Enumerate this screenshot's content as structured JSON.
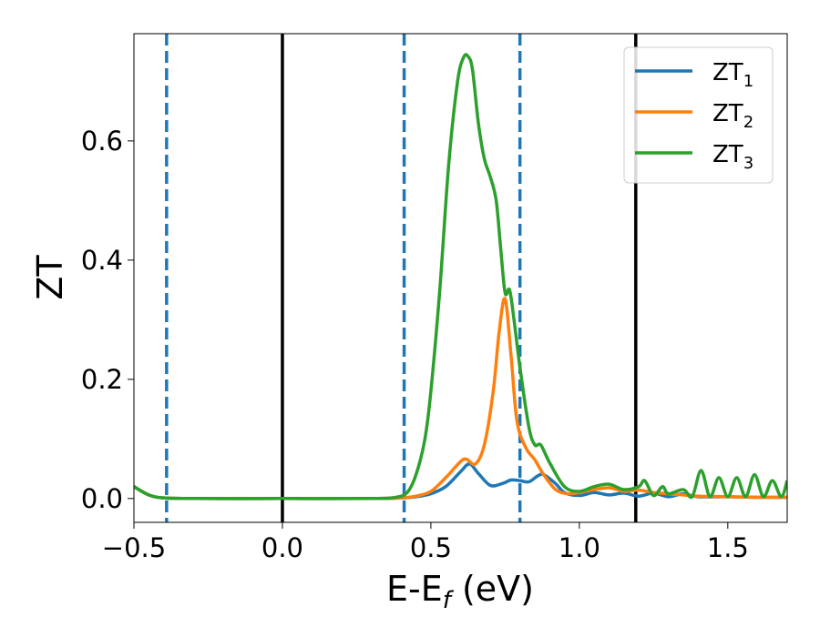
{
  "chart_data": {
    "type": "line",
    "xlabel": "E-E",
    "xlabel_sub": "f",
    "xlabel_unit": " (eV)",
    "ylabel": "ZT",
    "xlim": [
      -0.5,
      1.7
    ],
    "ylim": [
      -0.04,
      0.78
    ],
    "xticks": [
      -0.5,
      0.0,
      0.5,
      1.0,
      1.5
    ],
    "xtick_labels": [
      "−0.5",
      "0.0",
      "0.5",
      "1.0",
      "1.5"
    ],
    "yticks": [
      0.0,
      0.2,
      0.4,
      0.6
    ],
    "ytick_labels": [
      "0.0",
      "0.2",
      "0.4",
      "0.6"
    ],
    "grid": false,
    "legend_position": "top-right",
    "vlines": [
      {
        "x": -0.39,
        "style": "dashed",
        "color": "#1f77b4"
      },
      {
        "x": 0.0,
        "style": "solid",
        "color": "#000000"
      },
      {
        "x": 0.41,
        "style": "dashed",
        "color": "#1f77b4"
      },
      {
        "x": 0.8,
        "style": "dashed",
        "color": "#1f77b4"
      },
      {
        "x": 1.19,
        "style": "solid",
        "color": "#000000"
      }
    ],
    "series": [
      {
        "name": "ZT",
        "name_sub": "1",
        "color": "#1f77b4",
        "x": [
          -0.5,
          -0.45,
          -0.4,
          -0.3,
          0.0,
          0.3,
          0.4,
          0.45,
          0.5,
          0.55,
          0.6,
          0.63,
          0.66,
          0.7,
          0.74,
          0.77,
          0.8,
          0.83,
          0.86,
          0.88,
          0.92,
          0.95,
          1.0,
          1.05,
          1.1,
          1.15,
          1.2,
          1.25,
          1.3,
          1.35,
          1.4,
          1.5,
          1.6,
          1.7
        ],
        "y": [
          0.02,
          0.006,
          0.001,
          0.0,
          0.0,
          0.0,
          0.001,
          0.003,
          0.008,
          0.02,
          0.045,
          0.058,
          0.042,
          0.022,
          0.025,
          0.031,
          0.03,
          0.028,
          0.038,
          0.04,
          0.025,
          0.01,
          0.005,
          0.01,
          0.006,
          0.009,
          0.004,
          0.009,
          0.003,
          0.008,
          0.003,
          0.003,
          0.002,
          0.002
        ]
      },
      {
        "name": "ZT",
        "name_sub": "2",
        "color": "#ff7f0e",
        "x": [
          -0.5,
          -0.45,
          -0.4,
          -0.3,
          0.0,
          0.3,
          0.4,
          0.45,
          0.5,
          0.55,
          0.6,
          0.62,
          0.65,
          0.68,
          0.71,
          0.73,
          0.75,
          0.77,
          0.79,
          0.82,
          0.85,
          0.88,
          0.92,
          0.96,
          1.0,
          1.05,
          1.1,
          1.15,
          1.2,
          1.25,
          1.3,
          1.35,
          1.4,
          1.5,
          1.6,
          1.7
        ],
        "y": [
          0.02,
          0.006,
          0.001,
          0.0,
          0.0,
          0.0,
          0.001,
          0.004,
          0.012,
          0.035,
          0.062,
          0.066,
          0.058,
          0.09,
          0.18,
          0.28,
          0.335,
          0.24,
          0.13,
          0.085,
          0.065,
          0.04,
          0.015,
          0.008,
          0.01,
          0.015,
          0.018,
          0.012,
          0.014,
          0.01,
          0.008,
          0.006,
          0.004,
          0.003,
          0.002,
          0.002
        ]
      },
      {
        "name": "ZT",
        "name_sub": "3",
        "color": "#2ca02c",
        "x": [
          -0.5,
          -0.45,
          -0.4,
          -0.3,
          0.0,
          0.3,
          0.38,
          0.42,
          0.45,
          0.48,
          0.5,
          0.53,
          0.56,
          0.59,
          0.61,
          0.625,
          0.64,
          0.66,
          0.68,
          0.7,
          0.72,
          0.735,
          0.75,
          0.765,
          0.78,
          0.8,
          0.83,
          0.85,
          0.87,
          0.9,
          0.95,
          1.0,
          1.05,
          1.1,
          1.15,
          1.2,
          1.22,
          1.25,
          1.28,
          1.3,
          1.35,
          1.38,
          1.41,
          1.44,
          1.47,
          1.5,
          1.53,
          1.56,
          1.59,
          1.62,
          1.65,
          1.68,
          1.7
        ],
        "y": [
          0.02,
          0.006,
          0.001,
          0.0,
          0.0,
          0.0,
          0.002,
          0.01,
          0.04,
          0.1,
          0.18,
          0.35,
          0.56,
          0.7,
          0.74,
          0.742,
          0.72,
          0.63,
          0.57,
          0.54,
          0.5,
          0.42,
          0.345,
          0.35,
          0.3,
          0.22,
          0.12,
          0.09,
          0.09,
          0.06,
          0.02,
          0.012,
          0.02,
          0.024,
          0.015,
          0.02,
          0.03,
          0.005,
          0.02,
          0.008,
          0.015,
          0.003,
          0.047,
          0.003,
          0.035,
          0.003,
          0.035,
          0.003,
          0.04,
          0.003,
          0.03,
          0.003,
          0.03
        ]
      }
    ]
  }
}
